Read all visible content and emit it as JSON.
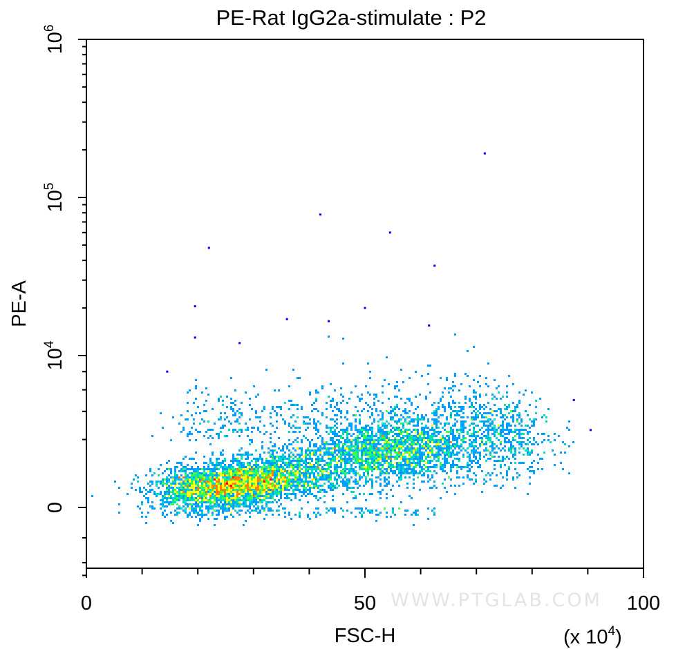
{
  "chart_data": {
    "type": "scatter",
    "title": "PE-Rat IgG2a-stimulate : P2",
    "xlabel": "FSC-H",
    "ylabel": "PE-A",
    "x_unit_label": "(x 10",
    "x_unit_exp": "4",
    "x_scale": "linear",
    "y_scale": "biexponential",
    "xlim": [
      0,
      100
    ],
    "x_ticks": [
      {
        "value": 0,
        "label": "0"
      },
      {
        "value": 50,
        "label": "50"
      },
      {
        "value": 100,
        "label": "100"
      }
    ],
    "y_ticks": [
      {
        "value": 0,
        "base": "0",
        "exp": ""
      },
      {
        "value": 10000,
        "base": "10",
        "exp": "4"
      },
      {
        "value": 100000,
        "base": "10",
        "exp": "5"
      },
      {
        "value": 1000000,
        "base": "10",
        "exp": "6"
      }
    ],
    "density_colors": [
      "#0000ff",
      "#00a0ff",
      "#00e0c0",
      "#40ff40",
      "#ffff00",
      "#ff8000",
      "#ff0000"
    ],
    "population": {
      "description_points": "x in units of 10^4, y in PE-A units",
      "main_cluster": {
        "x_center": 30,
        "y_center": 1500,
        "density": "peak"
      },
      "tail_cluster": {
        "x_center": 55,
        "y_center": 3000
      },
      "outliers": [
        {
          "x": 71.5,
          "y": 190000
        },
        {
          "x": 42,
          "y": 78000
        },
        {
          "x": 54.5,
          "y": 60000
        },
        {
          "x": 22,
          "y": 48000
        },
        {
          "x": 62.5,
          "y": 37000
        },
        {
          "x": 19.5,
          "y": 20500
        },
        {
          "x": 50,
          "y": 20000
        },
        {
          "x": 36,
          "y": 17000
        },
        {
          "x": 43.5,
          "y": 16500
        },
        {
          "x": 61.5,
          "y": 15500
        },
        {
          "x": 19.5,
          "y": 13000
        },
        {
          "x": 27.5,
          "y": 12000
        },
        {
          "x": 14.5,
          "y": 8000
        },
        {
          "x": 87.5,
          "y": 5000
        },
        {
          "x": 90.5,
          "y": 2600
        }
      ]
    }
  },
  "watermark": "WWW.PTGLAB.COM"
}
